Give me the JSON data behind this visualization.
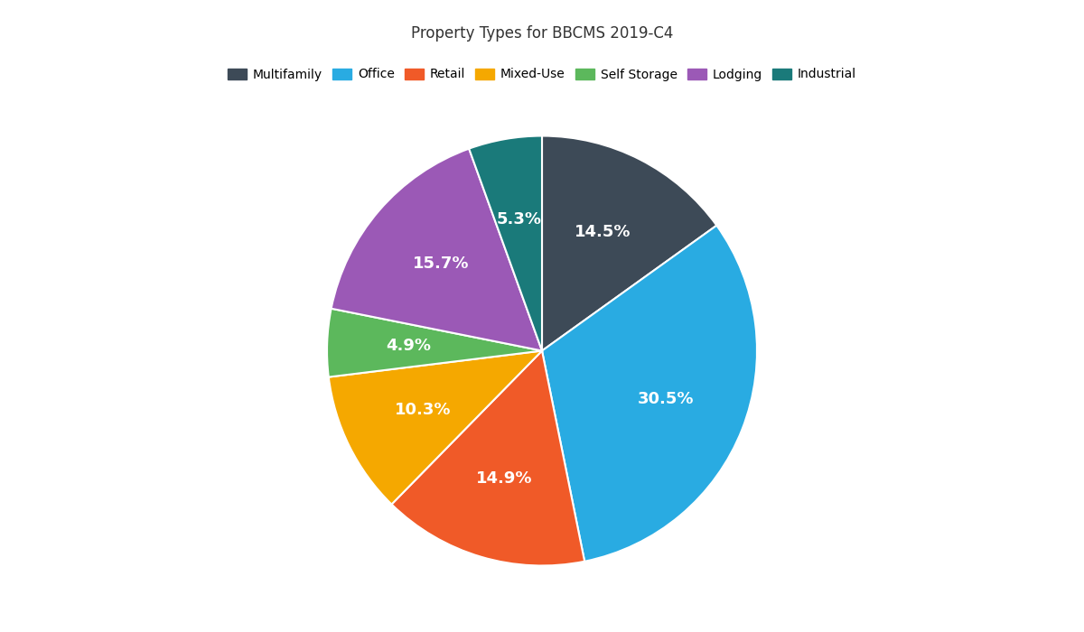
{
  "title": "Property Types for BBCMS 2019-C4",
  "labels": [
    "Multifamily",
    "Office",
    "Retail",
    "Mixed-Use",
    "Self Storage",
    "Lodging",
    "Industrial"
  ],
  "values": [
    14.5,
    30.5,
    14.9,
    10.3,
    4.9,
    15.7,
    5.3
  ],
  "colors": [
    "#3d4a57",
    "#29abe2",
    "#f05a28",
    "#f5a800",
    "#5cb85c",
    "#9b59b6",
    "#1a7a7a"
  ],
  "pct_labels": [
    "14.5%",
    "30.5%",
    "14.9%",
    "10.3%",
    "4.9%",
    "15.7%",
    "5.3%"
  ],
  "figsize": [
    12,
    7
  ],
  "dpi": 100,
  "background_color": "#ffffff",
  "text_color": "#ffffff",
  "label_fontsize": 13,
  "title_fontsize": 12,
  "legend_fontsize": 10,
  "startangle": 90
}
